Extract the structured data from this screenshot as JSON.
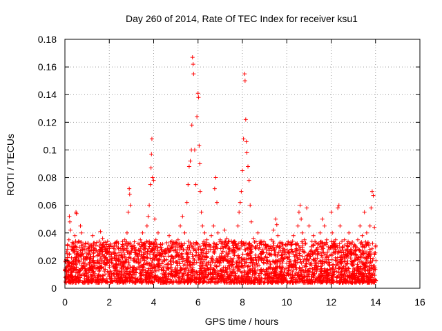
{
  "chart_data": {
    "type": "scatter",
    "title": "Day 260 of 2014, Rate Of TEC Index for receiver ksu1",
    "xlabel": "GPS time / hours",
    "ylabel": "ROTI / TECUs",
    "xlim": [
      0,
      16
    ],
    "ylim": [
      0,
      0.18
    ],
    "grid": true,
    "legend": "none",
    "x_ticks": [
      {
        "value": 0,
        "label": "0"
      },
      {
        "value": 2,
        "label": "2"
      },
      {
        "value": 4,
        "label": "4"
      },
      {
        "value": 6,
        "label": "6"
      },
      {
        "value": 8,
        "label": "8"
      },
      {
        "value": 10,
        "label": "10"
      },
      {
        "value": 12,
        "label": "12"
      },
      {
        "value": 14,
        "label": "14"
      },
      {
        "value": 16,
        "label": "16"
      }
    ],
    "y_ticks": [
      {
        "value": 0,
        "label": "0"
      },
      {
        "value": 0.02,
        "label": "0.02"
      },
      {
        "value": 0.04,
        "label": "0.04"
      },
      {
        "value": 0.06,
        "label": "0.06"
      },
      {
        "value": 0.08,
        "label": "0.08"
      },
      {
        "value": 0.1,
        "label": "0.1"
      },
      {
        "value": 0.12,
        "label": "0.12"
      },
      {
        "value": 0.14,
        "label": "0.14"
      },
      {
        "value": 0.16,
        "label": "0.16"
      },
      {
        "value": 0.18,
        "label": "0.18"
      }
    ],
    "series": [
      {
        "name": "ROTI",
        "color": "#ff0000",
        "marker": "plus",
        "points": [
          [
            0.05,
            0.012
          ],
          [
            0.1,
            0.025
          ],
          [
            0.15,
            0.018
          ],
          [
            0.18,
            0.035
          ],
          [
            0.2,
            0.052
          ],
          [
            0.22,
            0.048
          ],
          [
            0.25,
            0.042
          ],
          [
            0.28,
            0.03
          ],
          [
            0.3,
            0.022
          ],
          [
            0.35,
            0.015
          ],
          [
            0.4,
            0.028
          ],
          [
            0.45,
            0.038
          ],
          [
            0.5,
            0.055
          ],
          [
            0.52,
            0.054
          ],
          [
            0.55,
            0.033
          ],
          [
            0.6,
            0.02
          ],
          [
            0.65,
            0.012
          ],
          [
            0.7,
            0.045
          ],
          [
            0.75,
            0.04
          ],
          [
            0.8,
            0.025
          ],
          [
            0.85,
            0.018
          ],
          [
            0.9,
            0.03
          ],
          [
            1.0,
            0.022
          ],
          [
            1.1,
            0.015
          ],
          [
            1.2,
            0.03
          ],
          [
            1.25,
            0.038
          ],
          [
            1.3,
            0.026
          ],
          [
            1.4,
            0.014
          ],
          [
            1.5,
            0.024
          ],
          [
            1.55,
            0.034
          ],
          [
            1.6,
            0.041
          ],
          [
            1.7,
            0.036
          ],
          [
            1.8,
            0.03
          ],
          [
            1.9,
            0.018
          ],
          [
            2.0,
            0.01
          ],
          [
            2.1,
            0.02
          ],
          [
            2.2,
            0.016
          ],
          [
            2.3,
            0.025
          ],
          [
            2.4,
            0.012
          ],
          [
            2.5,
            0.018
          ],
          [
            2.6,
            0.022
          ],
          [
            2.7,
            0.035
          ],
          [
            2.8,
            0.04
          ],
          [
            2.85,
            0.055
          ],
          [
            2.9,
            0.072
          ],
          [
            2.92,
            0.068
          ],
          [
            2.95,
            0.06
          ],
          [
            3.0,
            0.03
          ],
          [
            3.1,
            0.02
          ],
          [
            3.2,
            0.028
          ],
          [
            3.3,
            0.024
          ],
          [
            3.4,
            0.035
          ],
          [
            3.5,
            0.04
          ],
          [
            3.6,
            0.03
          ],
          [
            3.7,
            0.045
          ],
          [
            3.75,
            0.052
          ],
          [
            3.8,
            0.06
          ],
          [
            3.85,
            0.075
          ],
          [
            3.88,
            0.087
          ],
          [
            3.9,
            0.097
          ],
          [
            3.92,
            0.108
          ],
          [
            3.95,
            0.08
          ],
          [
            4.0,
            0.078
          ],
          [
            4.05,
            0.05
          ],
          [
            4.1,
            0.035
          ],
          [
            4.2,
            0.04
          ],
          [
            4.3,
            0.025
          ],
          [
            4.4,
            0.032
          ],
          [
            4.5,
            0.02
          ],
          [
            4.6,
            0.026
          ],
          [
            4.7,
            0.038
          ],
          [
            4.8,
            0.03
          ],
          [
            4.9,
            0.022
          ],
          [
            5.0,
            0.028
          ],
          [
            5.1,
            0.035
          ],
          [
            5.2,
            0.045
          ],
          [
            5.3,
            0.052
          ],
          [
            5.4,
            0.04
          ],
          [
            5.5,
            0.062
          ],
          [
            5.55,
            0.075
          ],
          [
            5.6,
            0.088
          ],
          [
            5.65,
            0.092
          ],
          [
            5.7,
            0.1
          ],
          [
            5.72,
            0.118
          ],
          [
            5.75,
            0.167
          ],
          [
            5.78,
            0.162
          ],
          [
            5.8,
            0.155
          ],
          [
            5.85,
            0.1
          ],
          [
            5.9,
            0.075
          ],
          [
            5.95,
            0.124
          ],
          [
            6.0,
            0.141
          ],
          [
            6.02,
            0.138
          ],
          [
            6.05,
            0.103
          ],
          [
            6.08,
            0.09
          ],
          [
            6.1,
            0.07
          ],
          [
            6.15,
            0.055
          ],
          [
            6.2,
            0.045
          ],
          [
            6.3,
            0.04
          ],
          [
            6.4,
            0.035
          ],
          [
            6.5,
            0.03
          ],
          [
            6.6,
            0.038
          ],
          [
            6.7,
            0.045
          ],
          [
            6.75,
            0.072
          ],
          [
            6.8,
            0.08
          ],
          [
            6.85,
            0.062
          ],
          [
            6.9,
            0.04
          ],
          [
            7.0,
            0.035
          ],
          [
            7.1,
            0.03
          ],
          [
            7.2,
            0.042
          ],
          [
            7.3,
            0.036
          ],
          [
            7.4,
            0.028
          ],
          [
            7.5,
            0.034
          ],
          [
            7.6,
            0.025
          ],
          [
            7.7,
            0.032
          ],
          [
            7.8,
            0.045
          ],
          [
            7.85,
            0.055
          ],
          [
            7.9,
            0.062
          ],
          [
            7.95,
            0.07
          ],
          [
            8.0,
            0.085
          ],
          [
            8.05,
            0.108
          ],
          [
            8.1,
            0.155
          ],
          [
            8.12,
            0.15
          ],
          [
            8.15,
            0.122
          ],
          [
            8.18,
            0.106
          ],
          [
            8.2,
            0.098
          ],
          [
            8.25,
            0.088
          ],
          [
            8.3,
            0.078
          ],
          [
            8.35,
            0.06
          ],
          [
            8.4,
            0.048
          ],
          [
            8.5,
            0.036
          ],
          [
            8.6,
            0.03
          ],
          [
            8.7,
            0.04
          ],
          [
            8.8,
            0.034
          ],
          [
            8.9,
            0.028
          ],
          [
            9.0,
            0.022
          ],
          [
            9.1,
            0.03
          ],
          [
            9.2,
            0.025
          ],
          [
            9.3,
            0.035
          ],
          [
            9.4,
            0.042
          ],
          [
            9.5,
            0.05
          ],
          [
            9.55,
            0.046
          ],
          [
            9.6,
            0.038
          ],
          [
            9.7,
            0.03
          ],
          [
            9.8,
            0.022
          ],
          [
            9.9,
            0.028
          ],
          [
            10.0,
            0.018
          ],
          [
            10.1,
            0.025
          ],
          [
            10.2,
            0.032
          ],
          [
            10.3,
            0.038
          ],
          [
            10.4,
            0.028
          ],
          [
            10.5,
            0.045
          ],
          [
            10.55,
            0.055
          ],
          [
            10.6,
            0.06
          ],
          [
            10.65,
            0.05
          ],
          [
            10.7,
            0.04
          ],
          [
            10.8,
            0.035
          ],
          [
            10.9,
            0.058
          ],
          [
            11.0,
            0.045
          ],
          [
            11.1,
            0.03
          ],
          [
            11.2,
            0.038
          ],
          [
            11.3,
            0.025
          ],
          [
            11.4,
            0.032
          ],
          [
            11.5,
            0.04
          ],
          [
            11.6,
            0.05
          ],
          [
            11.7,
            0.045
          ],
          [
            11.8,
            0.035
          ],
          [
            11.9,
            0.028
          ],
          [
            12.0,
            0.055
          ],
          [
            12.05,
            0.04
          ],
          [
            12.1,
            0.03
          ],
          [
            12.2,
            0.035
          ],
          [
            12.3,
            0.058
          ],
          [
            12.35,
            0.06
          ],
          [
            12.4,
            0.045
          ],
          [
            12.5,
            0.03
          ],
          [
            12.6,
            0.035
          ],
          [
            12.7,
            0.028
          ],
          [
            12.8,
            0.04
          ],
          [
            12.9,
            0.032
          ],
          [
            13.0,
            0.025
          ],
          [
            13.1,
            0.03
          ],
          [
            13.2,
            0.035
          ],
          [
            13.3,
            0.045
          ],
          [
            13.4,
            0.038
          ],
          [
            13.5,
            0.055
          ],
          [
            13.6,
            0.04
          ],
          [
            13.7,
            0.032
          ],
          [
            13.75,
            0.045
          ],
          [
            13.8,
            0.058
          ],
          [
            13.85,
            0.07
          ],
          [
            13.9,
            0.067
          ],
          [
            13.95,
            0.044
          ],
          [
            14.0,
            0.03
          ],
          [
            14.02,
            0.02
          ]
        ]
      }
    ]
  }
}
